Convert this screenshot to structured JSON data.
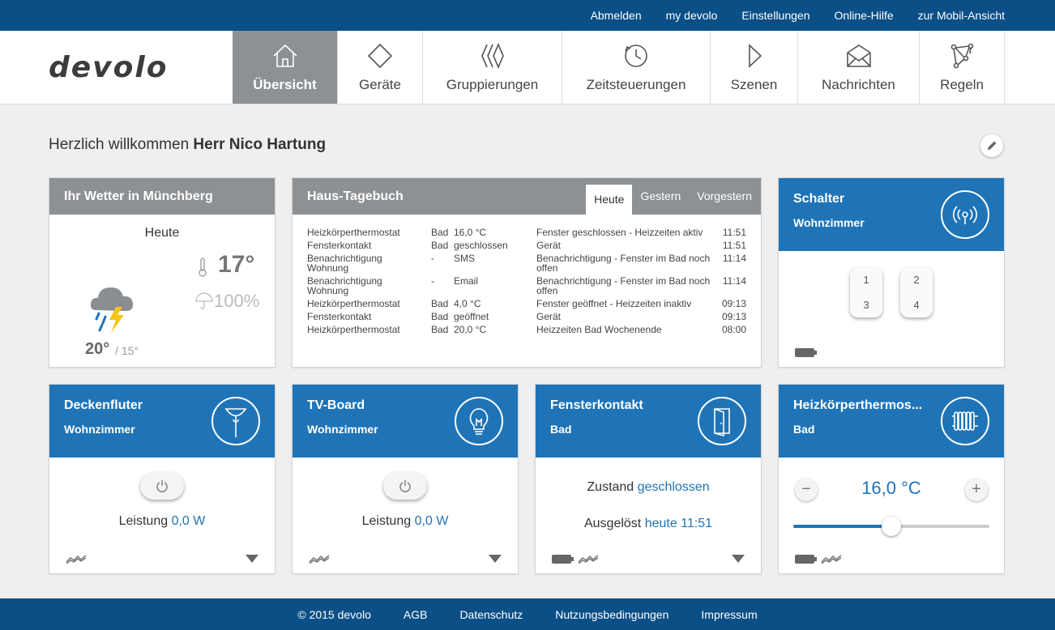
{
  "topbar": {
    "links": [
      "Abmelden",
      "my devolo",
      "Einstellungen",
      "Online-Hilfe",
      "zur Mobil-Ansicht"
    ]
  },
  "logo": "devolo",
  "nav": [
    {
      "label": "Übersicht",
      "icon": "home-icon"
    },
    {
      "label": "Geräte",
      "icon": "diamond-icon"
    },
    {
      "label": "Gruppierungen",
      "icon": "grouping-icon"
    },
    {
      "label": "Zeitsteuerungen",
      "icon": "clock-icon"
    },
    {
      "label": "Szenen",
      "icon": "play-icon"
    },
    {
      "label": "Nachrichten",
      "icon": "envelope-icon"
    },
    {
      "label": "Regeln",
      "icon": "network-icon"
    }
  ],
  "welcome": {
    "prefix": "Herzlich willkommen ",
    "name": "Herr Nico Hartung"
  },
  "weather": {
    "title": "Ihr Wetter in Münchberg",
    "day": "Heute",
    "temp": "17°",
    "rain": "100%",
    "high": "20°",
    "low": "/ 15°"
  },
  "diary": {
    "title": "Haus-Tagebuch",
    "tabs": [
      "Heute",
      "Gestern",
      "Vorgestern"
    ],
    "rows": [
      {
        "device": "Heizkörperthermostat",
        "room": "Bad",
        "value": "16,0 °C",
        "event": "Fenster geschlossen - Heizzeiten aktiv",
        "time": "11:51"
      },
      {
        "device": "Fensterkontakt",
        "room": "Bad",
        "value": "geschlossen",
        "event": "Gerät",
        "time": "11:51"
      },
      {
        "device": "Benachrichtigung Wohnung",
        "room": "-",
        "value": "SMS",
        "event": "Benachrichtigung - Fenster im Bad noch offen",
        "time": "11:14"
      },
      {
        "device": "Benachrichtigung Wohnung",
        "room": "-",
        "value": "Email",
        "event": "Benachrichtigung - Fenster im Bad noch offen",
        "time": "11:14"
      },
      {
        "device": "Heizkörperthermostat",
        "room": "Bad",
        "value": "4,0 °C",
        "event": "Fenster geöffnet - Heizzeiten inaktiv",
        "time": "09:13"
      },
      {
        "device": "Fensterkontakt",
        "room": "Bad",
        "value": "geöffnet",
        "event": "Gerät",
        "time": "09:13"
      },
      {
        "device": "Heizkörperthermostat",
        "room": "Bad",
        "value": "20,0 °C",
        "event": "Heizzeiten Bad Wochenende",
        "time": "08:00"
      }
    ]
  },
  "schalter": {
    "title": "Schalter",
    "room": "Wohnzimmer",
    "keys": [
      "1",
      "3",
      "2",
      "4"
    ]
  },
  "deckenfluter": {
    "title": "Deckenfluter",
    "room": "Wohnzimmer",
    "label": "Leistung",
    "value": "0,0 W"
  },
  "tvboard": {
    "title": "TV-Board",
    "room": "Wohnzimmer",
    "label": "Leistung",
    "value": "0,0 W"
  },
  "fenster": {
    "title": "Fensterkontakt",
    "room": "Bad",
    "state_label": "Zustand",
    "state": "geschlossen",
    "trig_label": "Ausgelöst",
    "trig": "heute 11:51"
  },
  "thermostat": {
    "title": "Heizkörperthermos...",
    "room": "Bad",
    "value": "16,0 °C",
    "minus": "−",
    "plus": "+",
    "level": 0.5
  },
  "footer": {
    "links": [
      "© 2015 devolo",
      "AGB",
      "Datenschutz",
      "Nutzungsbedingungen",
      "Impressum"
    ]
  },
  "colors": {
    "brand": "#0b4f87",
    "accent": "#1f74b7",
    "header_gray": "#8e9194"
  }
}
